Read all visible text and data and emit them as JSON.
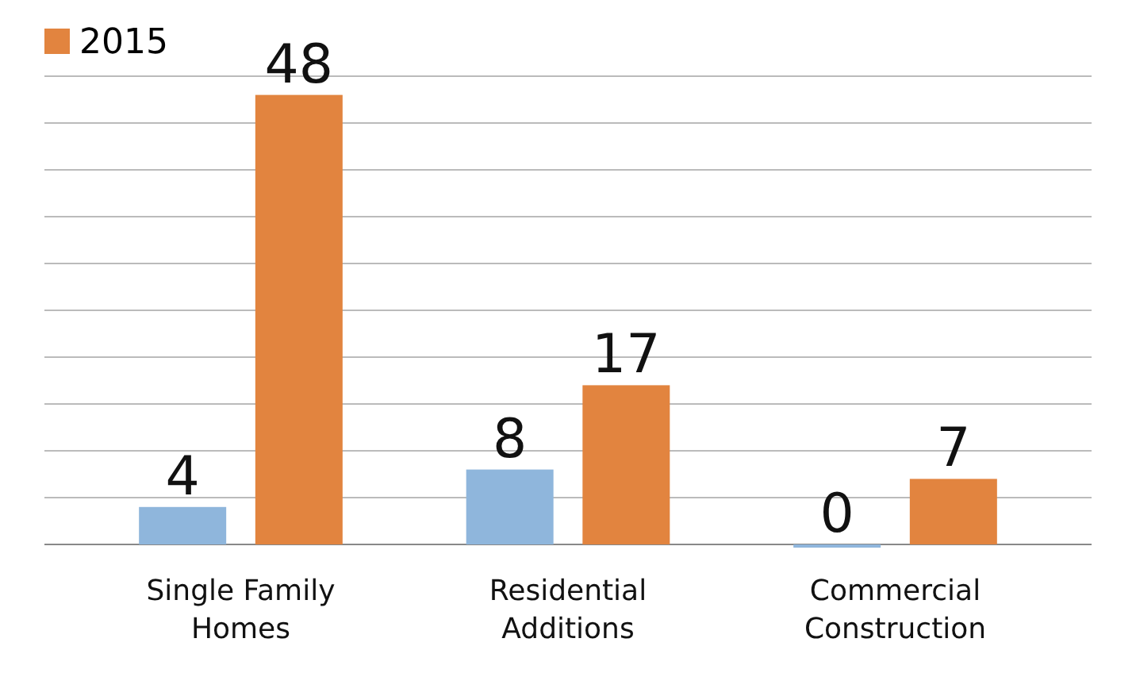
{
  "chart_data": {
    "type": "bar",
    "categories": [
      "Single Family Homes",
      "Residential Additions",
      "Commercial Construction"
    ],
    "series": [
      {
        "color": "#8fb6dc",
        "values": [
          4,
          8,
          0
        ]
      },
      {
        "name": "2015",
        "color": "#e2843f",
        "values": [
          48,
          17,
          7
        ]
      }
    ],
    "ylim": [
      0,
      50
    ],
    "yticks": [
      {
        "value": 0,
        "label": null
      },
      {
        "value": 5,
        "label": null
      },
      {
        "value": 10,
        "label": null
      },
      {
        "value": 15,
        "label": null
      },
      {
        "value": 20,
        "label": null
      },
      {
        "value": 25,
        "label": null
      },
      {
        "value": 30,
        "label": null
      },
      {
        "value": 35,
        "label": null
      },
      {
        "value": 40,
        "label": null
      },
      {
        "value": 45,
        "label": null
      },
      {
        "value": 50,
        "label": null
      }
    ],
    "tick_labels": "x",
    "grid": "y",
    "data_labels": true,
    "legend": "top left"
  }
}
